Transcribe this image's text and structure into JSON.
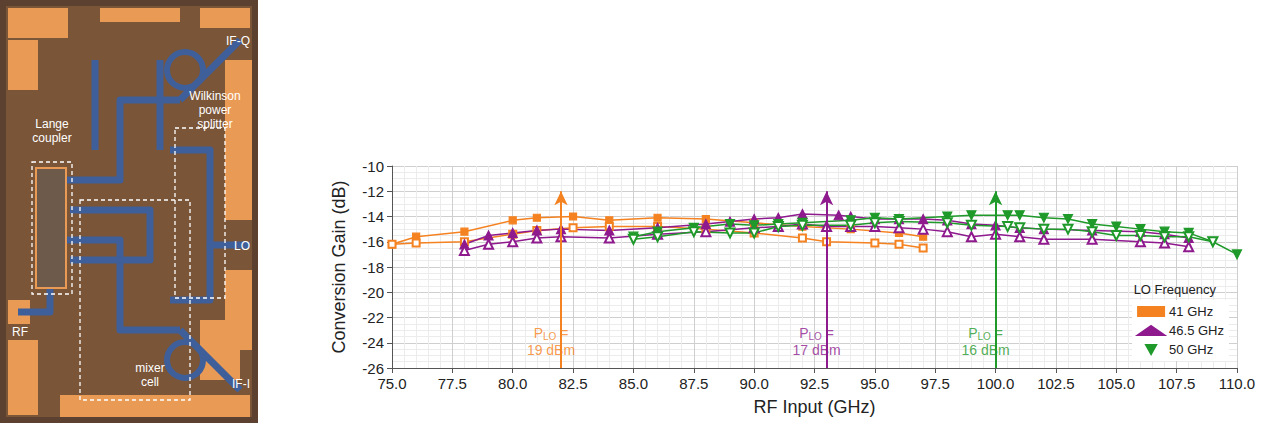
{
  "chart_data": {
    "type": "line",
    "x_label": "RF Input (GHz)",
    "y_label": "Conversion Gain (dB)",
    "xlim": [
      75,
      110
    ],
    "xticks": [
      {
        "value": 75,
        "label": "75.0"
      },
      {
        "value": 77.5,
        "label": "77.5"
      },
      {
        "value": 80,
        "label": "80.0"
      },
      {
        "value": 82.5,
        "label": "82.5"
      },
      {
        "value": 85,
        "label": "85.0"
      },
      {
        "value": 87.5,
        "label": "87.5"
      },
      {
        "value": 90,
        "label": "90.0"
      },
      {
        "value": 92.5,
        "label": "92.5"
      },
      {
        "value": 95,
        "label": "95.0"
      },
      {
        "value": 97.5,
        "label": "97.5"
      },
      {
        "value": 100,
        "label": "100.0"
      },
      {
        "value": 102.5,
        "label": "102.5"
      },
      {
        "value": 105,
        "label": "105.0"
      },
      {
        "value": 107.5,
        "label": "107.5"
      },
      {
        "value": 110,
        "label": "110.0"
      }
    ],
    "ylim": [
      -26,
      -10
    ],
    "yticks": [
      -26,
      -24,
      -22,
      -20,
      -18,
      -16,
      -14,
      -12,
      -10
    ],
    "grid": true,
    "legend": "lower right",
    "legend_title": "LO Frequency",
    "series": [
      {
        "name": "41 GHz",
        "color": "#f58220",
        "marker": "square",
        "x": [
          75,
          76,
          78,
          80,
          81,
          82.5,
          84,
          86,
          88,
          90,
          92,
          94,
          96,
          97
        ],
        "values": [
          -16.2,
          -15.6,
          -15.2,
          -14.3,
          -14.1,
          -14.0,
          -14.3,
          -14.1,
          -14.2,
          -14.5,
          -14.8,
          -15.0,
          -15.3,
          -15.6
        ]
      },
      {
        "name": "41 GHz",
        "color": "#f58220",
        "marker": "square-open",
        "x": [
          75,
          76,
          78,
          80,
          81,
          82.5,
          84,
          86,
          88,
          90,
          92,
          93,
          95,
          96,
          97
        ],
        "values": [
          -16.2,
          -16.1,
          -16.0,
          -15.4,
          -15.1,
          -14.9,
          -14.8,
          -14.8,
          -15.0,
          -15.3,
          -15.7,
          -16.0,
          -16.1,
          -16.2,
          -16.5
        ]
      },
      {
        "name": "46.5 GHz",
        "color": "#8e1a8e",
        "marker": "triangle",
        "x": [
          78,
          79,
          80,
          81,
          82,
          84,
          86,
          88,
          89,
          90,
          91,
          92,
          93.5,
          94,
          95,
          96,
          97,
          98,
          99,
          100,
          101,
          102,
          104,
          106,
          107,
          108
        ],
        "values": [
          -16.2,
          -15.5,
          -15.3,
          -15.1,
          -15.0,
          -15.1,
          -14.9,
          -14.6,
          -14.4,
          -14.2,
          -14.1,
          -13.8,
          -13.9,
          -14.0,
          -14.2,
          -14.2,
          -14.2,
          -14.3,
          -14.6,
          -14.7,
          -14.9,
          -15.0,
          -15.1,
          -15.2,
          -15.4,
          -15.7
        ]
      },
      {
        "name": "46.5 GHz",
        "color": "#8e1a8e",
        "marker": "triangle-open",
        "x": [
          78,
          79,
          80,
          81,
          82,
          84,
          86,
          88,
          90,
          91,
          92,
          93,
          94,
          95,
          96,
          97,
          98,
          99,
          100,
          101,
          102,
          104,
          106,
          107,
          108
        ],
        "values": [
          -16.7,
          -16.2,
          -16.0,
          -15.7,
          -15.6,
          -15.7,
          -15.4,
          -15.2,
          -14.9,
          -14.8,
          -14.6,
          -14.8,
          -14.8,
          -14.8,
          -14.9,
          -15.0,
          -15.2,
          -15.6,
          -15.4,
          -15.6,
          -15.8,
          -15.8,
          -16.0,
          -16.1,
          -16.4
        ]
      },
      {
        "name": "50 GHz",
        "color": "#1f9a2a",
        "marker": "triangle-down",
        "x": [
          85,
          86,
          87.5,
          89,
          90,
          91,
          92,
          94,
          95,
          96,
          98,
          99,
          100.5,
          101,
          102,
          103,
          104,
          105,
          106,
          107,
          108,
          109,
          110
        ],
        "values": [
          -15.6,
          -15.2,
          -14.9,
          -14.6,
          -14.7,
          -14.6,
          -14.5,
          -14.3,
          -14.1,
          -14.2,
          -14.0,
          -13.9,
          -13.9,
          -13.9,
          -14.1,
          -14.2,
          -14.6,
          -14.8,
          -15.0,
          -15.2,
          -15.3,
          -16.0,
          -17.0
        ]
      },
      {
        "name": "50 GHz",
        "color": "#1f9a2a",
        "marker": "triangle-down-open",
        "x": [
          85,
          86,
          87.5,
          89,
          90,
          91,
          92,
          94,
          95,
          96,
          98,
          99,
          100.5,
          101,
          102,
          103,
          104,
          105,
          106,
          107,
          108,
          109
        ],
        "values": [
          -15.8,
          -15.6,
          -15.2,
          -15.3,
          -15.3,
          -14.8,
          -14.7,
          -14.7,
          -14.5,
          -14.4,
          -14.5,
          -14.7,
          -14.8,
          -14.9,
          -15.0,
          -15.0,
          -15.2,
          -15.5,
          -15.5,
          -15.6,
          -15.6,
          -16.0
        ]
      }
    ],
    "annotations": [
      {
        "x": 82,
        "y_from": -26,
        "y_to": -12,
        "color": "#f58220",
        "symbol": "P",
        "subscript": "LO",
        "text": " =",
        "value_text": "19 dBm"
      },
      {
        "x": 93,
        "y_from": -26,
        "y_to": -12,
        "color": "#8e1a8e",
        "symbol": "P",
        "subscript": "LO",
        "text": " =",
        "value_text": "17 dBm"
      },
      {
        "x": 100,
        "y_from": -26,
        "y_to": -12,
        "color": "#1f9a2a",
        "symbol": "P",
        "subscript": "LO",
        "text": " =",
        "value_text": "16 dBm"
      }
    ]
  },
  "die_photo": {
    "labels": [
      "Lange coupler",
      "Wilkinson power splitter",
      "mixer cell",
      "RF",
      "LO",
      "IF-Q",
      "IF-I"
    ]
  }
}
